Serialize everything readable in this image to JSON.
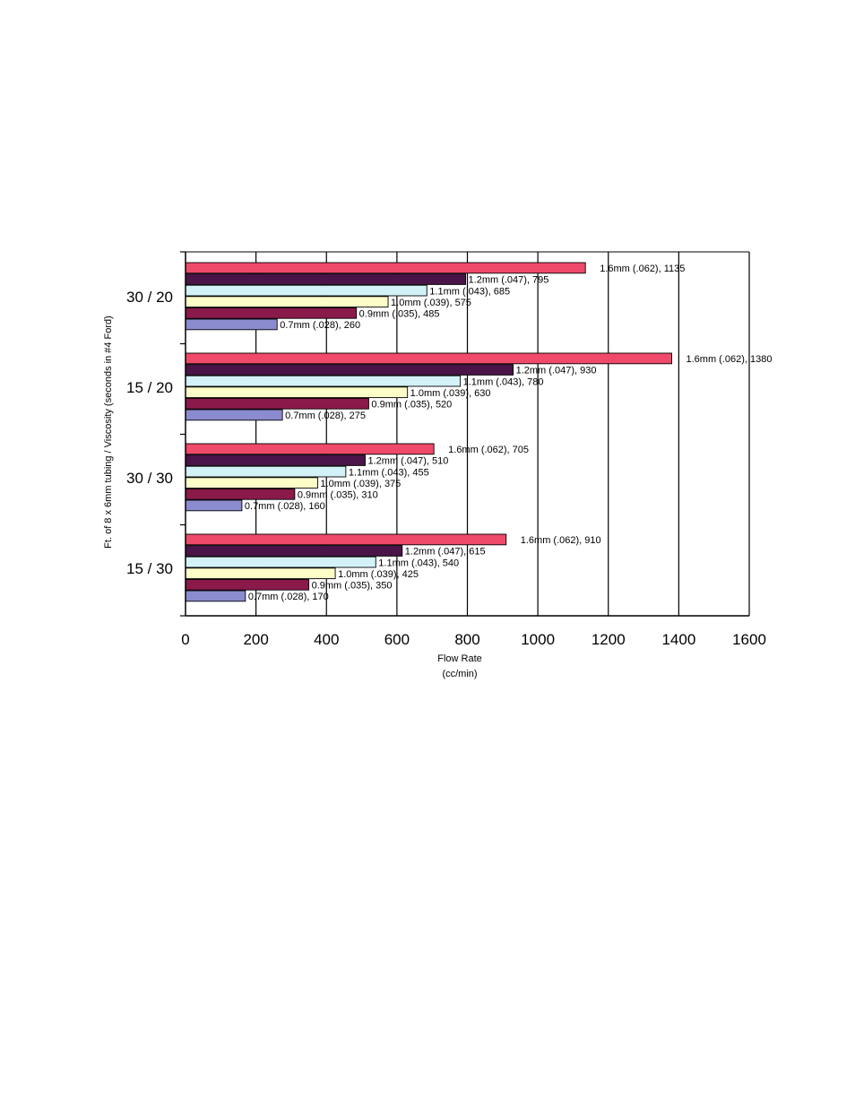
{
  "chart_data": {
    "type": "bar",
    "orientation": "horizontal",
    "categories": [
      "15 / 30",
      "30 / 30",
      "15 / 20",
      "30 / 20"
    ],
    "series": [
      {
        "name": "0.7mm (.028)",
        "color": "#8b8bd0",
        "values": [
          170,
          160,
          275,
          260
        ]
      },
      {
        "name": "0.9mm (.035)",
        "color": "#8a1a4a",
        "values": [
          350,
          310,
          520,
          485
        ]
      },
      {
        "name": "1.0mm (.039)",
        "color": "#fdfdc8",
        "values": [
          425,
          375,
          630,
          575
        ]
      },
      {
        "name": "1.1mm (.043)",
        "color": "#d2f2f8",
        "values": [
          540,
          455,
          780,
          685
        ]
      },
      {
        "name": "1.2mm (.047)",
        "color": "#4a1448",
        "values": [
          615,
          510,
          930,
          795
        ]
      },
      {
        "name": "1.6mm (.062)",
        "color": "#ef4a6a",
        "values": [
          910,
          705,
          1380,
          1135
        ]
      }
    ],
    "data_labels": [
      [
        "0.7mm (.028), 170",
        "0.9mm (.035), 350",
        "1.0mm (.039), 425",
        "1.1mm (.043), 540",
        "1.2mm (.047), 615",
        "1.6mm (.062), 910"
      ],
      [
        "0.7mm (.028), 160",
        "0.9mm (.035), 310",
        "1.0mm (.039), 375",
        "1.1mm (.043), 455",
        "1.2mm (.047), 510",
        "1.6mm (.062), 705"
      ],
      [
        "0.7mm (.028), 275",
        "0.9mm (.035), 520",
        "1.0mm (.039), 630",
        "1.1mm (.043), 780",
        "1.2mm (.047), 930",
        "1.6mm (.062), 1380"
      ],
      [
        "0.7mm (.028), 260",
        "0.9mm (.035), 485",
        "1.0mm (.039), 575",
        "1.1mm (.043), 685",
        "1.2mm (.047), 795",
        "1.6mm (.062), 1135"
      ]
    ],
    "xlabel": [
      "Flow Rate",
      "(cc/min)"
    ],
    "ylabel": "Ft. of 8 x 6mm tubing / Viscosity (seconds in #4 Ford)",
    "xlim": [
      0,
      1600
    ],
    "xticks": [
      "0",
      "200",
      "400",
      "600",
      "800",
      "1000",
      "1200",
      "1400",
      "1600"
    ],
    "grid": "vertical",
    "legend": "none"
  }
}
